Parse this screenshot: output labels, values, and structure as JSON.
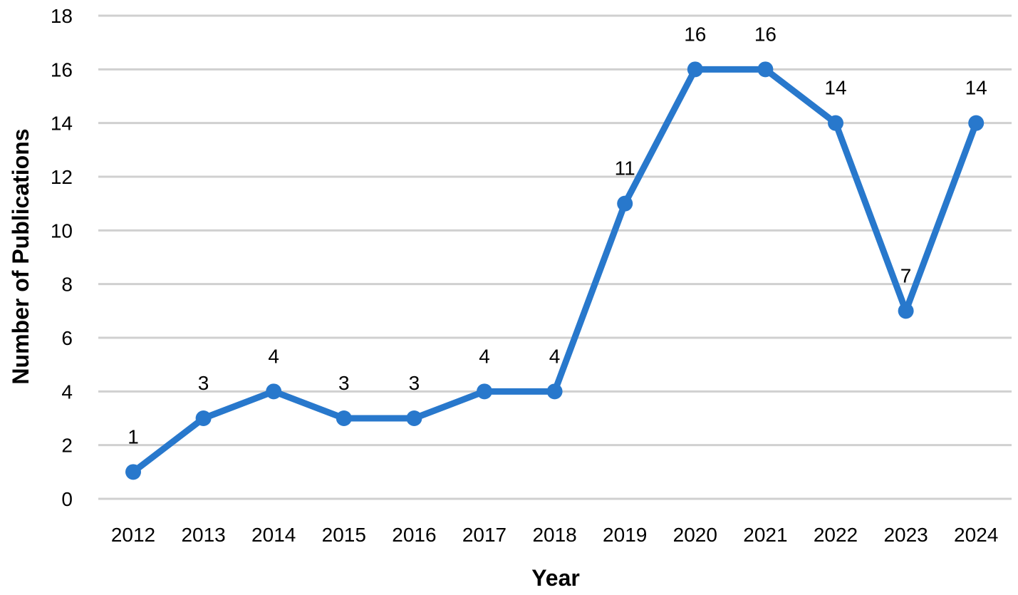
{
  "chart_data": {
    "type": "line",
    "title": "",
    "xlabel": "Year",
    "ylabel": "Number of Publications",
    "categories": [
      "2012",
      "2013",
      "2014",
      "2015",
      "2016",
      "2017",
      "2018",
      "2019",
      "2020",
      "2021",
      "2022",
      "2023",
      "2024"
    ],
    "series": [
      {
        "values": [
          1,
          3,
          4,
          3,
          3,
          4,
          4,
          11,
          16,
          16,
          14,
          7,
          14
        ]
      }
    ],
    "ylim": [
      0,
      18
    ],
    "yticks": [
      0,
      2,
      4,
      6,
      8,
      10,
      12,
      14,
      16,
      18
    ],
    "grid": true,
    "legend": "none",
    "data_labels": true,
    "colors": {
      "series": "#2878cc",
      "grid": "#d0d0d0"
    }
  }
}
